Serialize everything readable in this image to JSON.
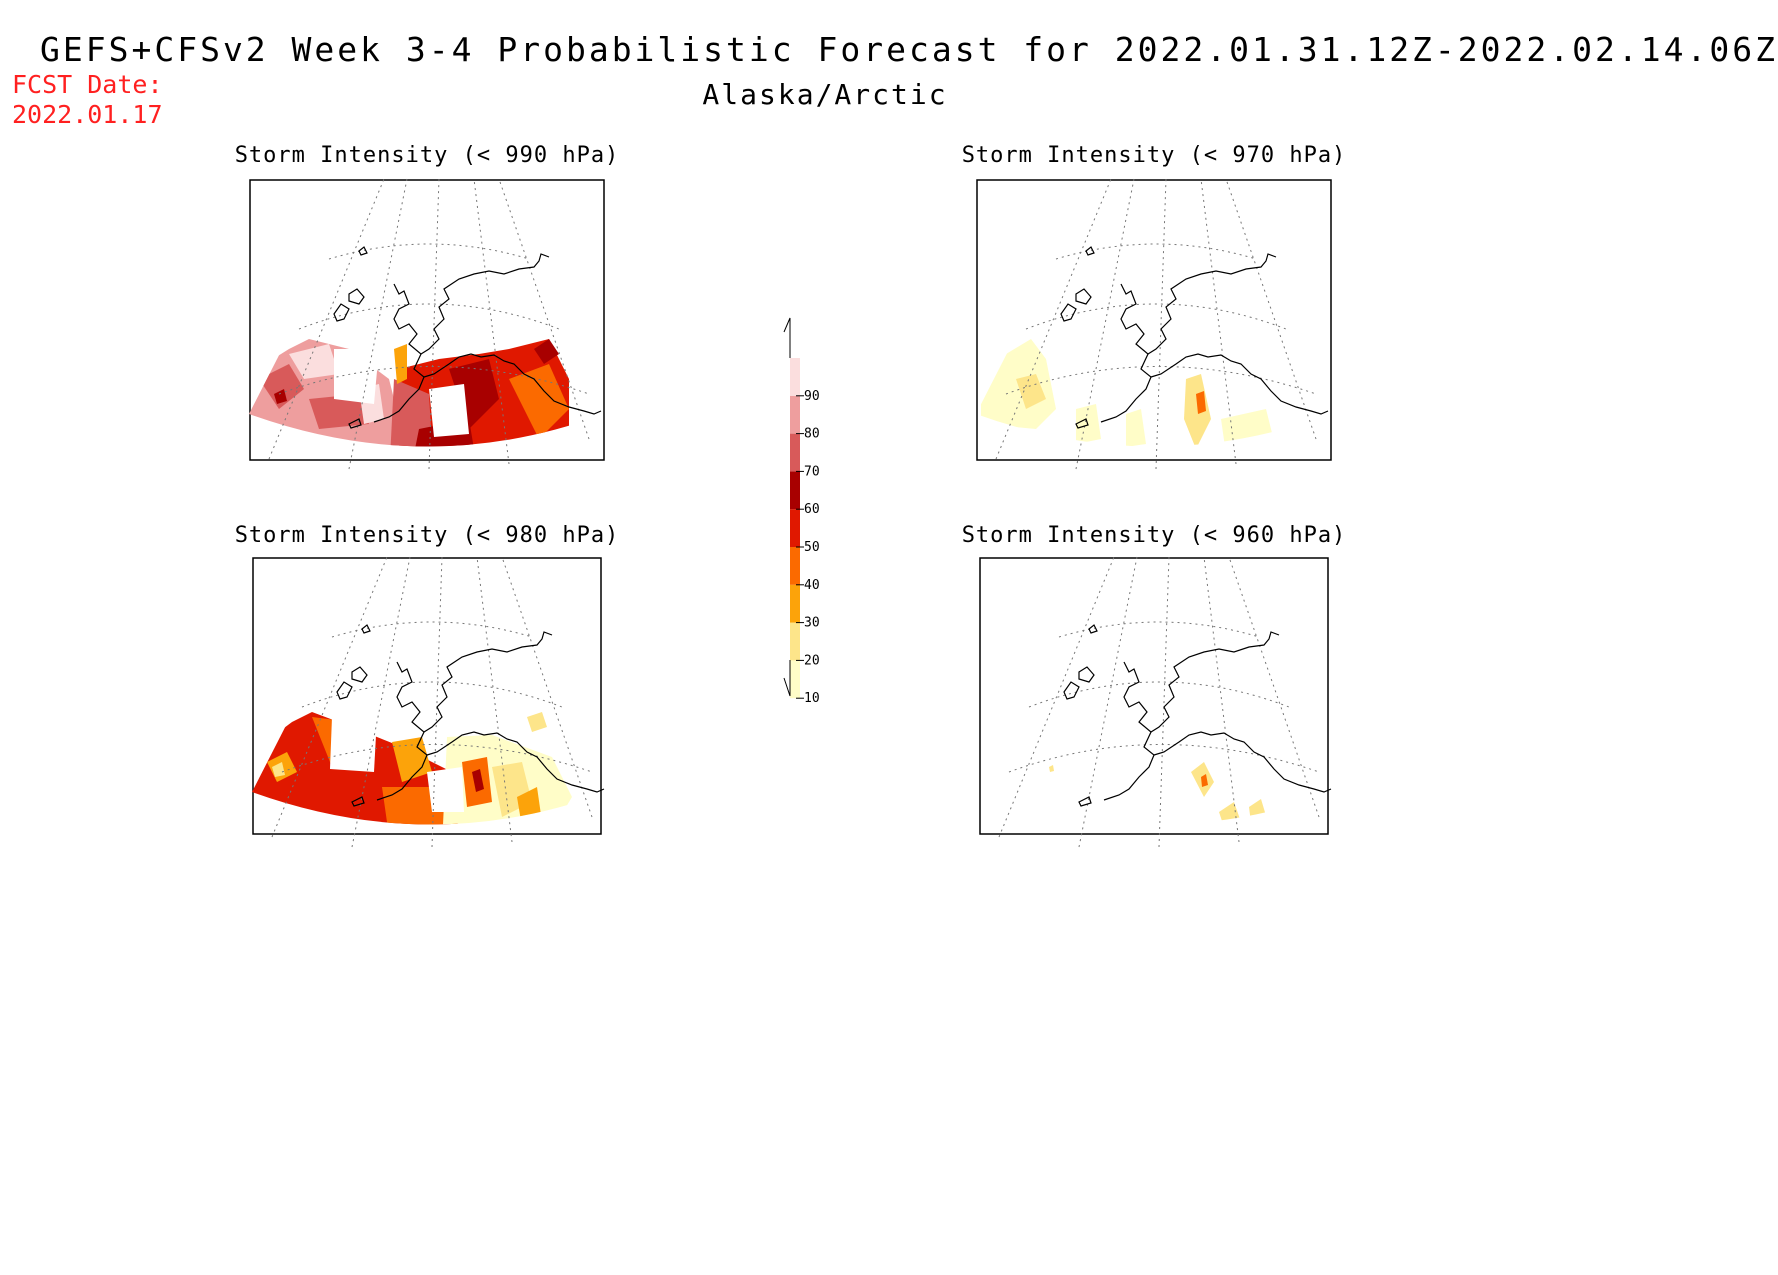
{
  "header": {
    "title": "GEFS+CFSv2 Week 3-4 Probabilistic Forecast for 2022.01.31.12Z-2022.02.14.06Z",
    "region": "Alaska/Arctic",
    "fcst_label": "FCST Date:",
    "fcst_date": "2022.01.17"
  },
  "panels": [
    {
      "title": "Storm Intensity (< 990 hPa)"
    },
    {
      "title": "Storm Intensity (< 970 hPa)"
    },
    {
      "title": "Storm Intensity (< 980 hPa)"
    },
    {
      "title": "Storm Intensity (< 960 hPa)"
    }
  ],
  "colorbar": {
    "levels": [
      "10",
      "20",
      "30",
      "40",
      "50",
      "60",
      "70",
      "80",
      "90"
    ],
    "colors": [
      "#fffdc8",
      "#fde58a",
      "#fca30a",
      "#fb6a00",
      "#e01800",
      "#a80000",
      "#d85a5a",
      "#ee9e9e",
      "#fbdede"
    ]
  },
  "colors": {
    "fcst_text": "#ff2020"
  }
}
